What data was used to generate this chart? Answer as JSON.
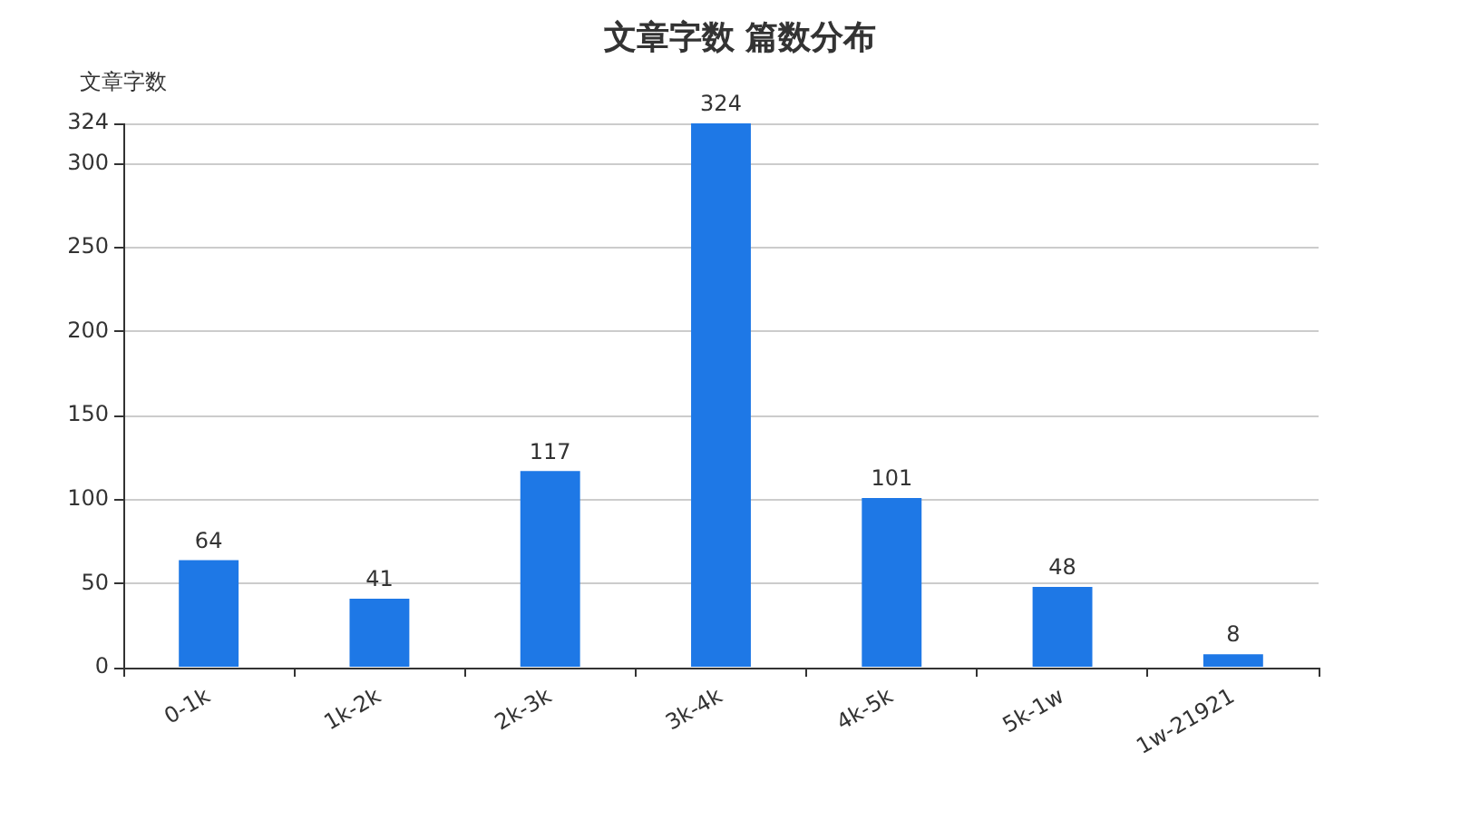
{
  "chart_data": {
    "type": "bar",
    "title": "文章字数 篇数分布",
    "ylabel": "文章字数",
    "categories": [
      "0-1k",
      "1k-2k",
      "2k-3k",
      "3k-4k",
      "4k-5k",
      "5k-1w",
      "1w-21921"
    ],
    "values": [
      64,
      41,
      117,
      324,
      101,
      48,
      8
    ],
    "color": "#1e78e6",
    "ylim": [
      0,
      324
    ],
    "yticks": [
      0,
      50,
      100,
      150,
      200,
      250,
      300,
      324
    ],
    "grid": "y",
    "data_labels": true
  }
}
